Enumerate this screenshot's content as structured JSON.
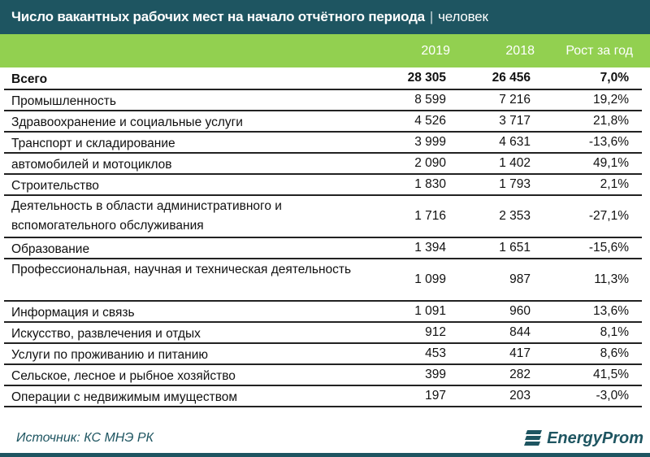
{
  "header": {
    "title": "Число вакантных рабочих мест на начало отчётного периода",
    "separator": "|",
    "unit": "человек"
  },
  "columns": {
    "y2019": "2019",
    "y2018": "2018",
    "growth": "Рост за год"
  },
  "rows": [
    {
      "label": "Всего",
      "v2019": "28 305",
      "v2018": "26 456",
      "growth": "7,0%",
      "bold": true
    },
    {
      "label": "Промышленность",
      "v2019": "8 599",
      "v2018": "7 216",
      "growth": "19,2%"
    },
    {
      "label": "Здравоохранение и социальные услуги",
      "v2019": "4 526",
      "v2018": "3 717",
      "growth": "21,8%"
    },
    {
      "label": "Транспорт и складирование",
      "v2019": "3 999",
      "v2018": "4 631",
      "growth": "-13,6%"
    },
    {
      "label": "автомобилей и мотоциклов",
      "v2019": "2 090",
      "v2018": "1 402",
      "growth": "49,1%"
    },
    {
      "label": "Строительство",
      "v2019": "1 830",
      "v2018": "1 793",
      "growth": "2,1%"
    },
    {
      "label": "Деятельность в области административного и вспомогательного обслуживания",
      "v2019": "1 716",
      "v2018": "2 353",
      "growth": "-27,1%"
    },
    {
      "label": "Образование",
      "v2019": "1 394",
      "v2018": "1 651",
      "growth": "-15,6%"
    },
    {
      "label": "Профессиональная, научная и техническая деятельность",
      "v2019": "1 099",
      "v2018": "987",
      "growth": "11,3%"
    },
    {
      "label": "Информация и связь",
      "v2019": "1 091",
      "v2018": "960",
      "growth": "13,6%"
    },
    {
      "label": "Искусство, развлечения и отдых",
      "v2019": "912",
      "v2018": "844",
      "growth": "8,1%"
    },
    {
      "label": "Услуги по проживанию и питанию",
      "v2019": "453",
      "v2018": "417",
      "growth": "8,6%"
    },
    {
      "label": "Сельское, лесное и рыбное хозяйство",
      "v2019": "399",
      "v2018": "282",
      "growth": "41,5%"
    },
    {
      "label": "Операции с недвижимым имуществом",
      "v2019": "197",
      "v2018": "203",
      "growth": "-3,0%"
    }
  ],
  "footer": {
    "source": "Источник: КС МНЭ РК",
    "logo_text": "EnergyProm",
    "logo_icon": "energyprom-logo-icon"
  },
  "colors": {
    "header_bg": "#1e5561",
    "column_header_bg": "#92d050",
    "text": "#111111"
  }
}
